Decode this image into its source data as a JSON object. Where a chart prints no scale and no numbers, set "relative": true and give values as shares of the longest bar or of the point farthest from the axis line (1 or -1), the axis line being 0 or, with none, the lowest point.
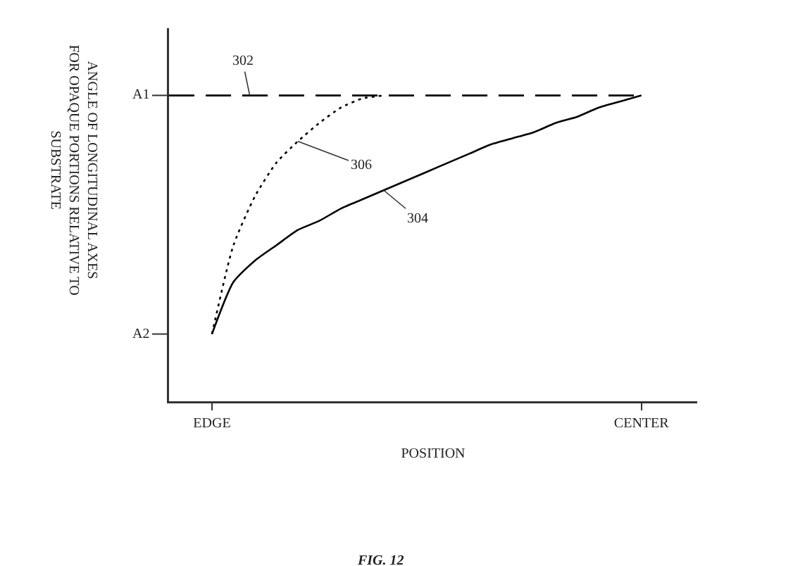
{
  "chart_data": {
    "type": "line",
    "relative": true,
    "xlabel": "POSITION",
    "ylabel": "ANGLE OF LONGITUDINAL AXES\nFOR OPAQUE PORTIONS RELATIVE TO\nSUBSTRATE",
    "categories": [
      null,
      null,
      "EDGE",
      null,
      null,
      null,
      null,
      null,
      null,
      null,
      null,
      null,
      null,
      null,
      null,
      null,
      null,
      null,
      null,
      null,
      null,
      null,
      "CENTER",
      null,
      null
    ],
    "grid": false,
    "marker": "none",
    "series": [
      {
        "color": "#000000",
        "line_style": "dashed",
        "values": [
          1,
          1,
          1,
          1,
          1,
          1,
          1,
          1,
          1,
          1,
          1,
          1,
          1,
          1,
          1,
          1,
          1,
          1,
          1,
          1,
          1,
          1,
          1,
          null,
          null
        ]
      },
      {
        "color": "#000000",
        "line_style": "dotted",
        "values": [
          null,
          null,
          0.22,
          0.51,
          0.67,
          0.78,
          0.85,
          0.91,
          0.96,
          0.99,
          1,
          null,
          null,
          null,
          null,
          null,
          null,
          null,
          null,
          null,
          null,
          null,
          null,
          null,
          null
        ]
      },
      {
        "color": "#000000",
        "line_style": "solid",
        "values": [
          null,
          null,
          0.22,
          0.39,
          0.46,
          0.51,
          0.56,
          0.59,
          0.63,
          0.66,
          0.69,
          0.72,
          0.75,
          0.78,
          0.81,
          0.84,
          0.86,
          0.88,
          0.91,
          0.93,
          0.96,
          0.98,
          1,
          null,
          null
        ]
      }
    ],
    "annotations": [
      {
        "text": "302",
        "y": 1
      },
      "306",
      "304",
      "A1",
      "A2",
      "FIG. 12"
    ]
  }
}
